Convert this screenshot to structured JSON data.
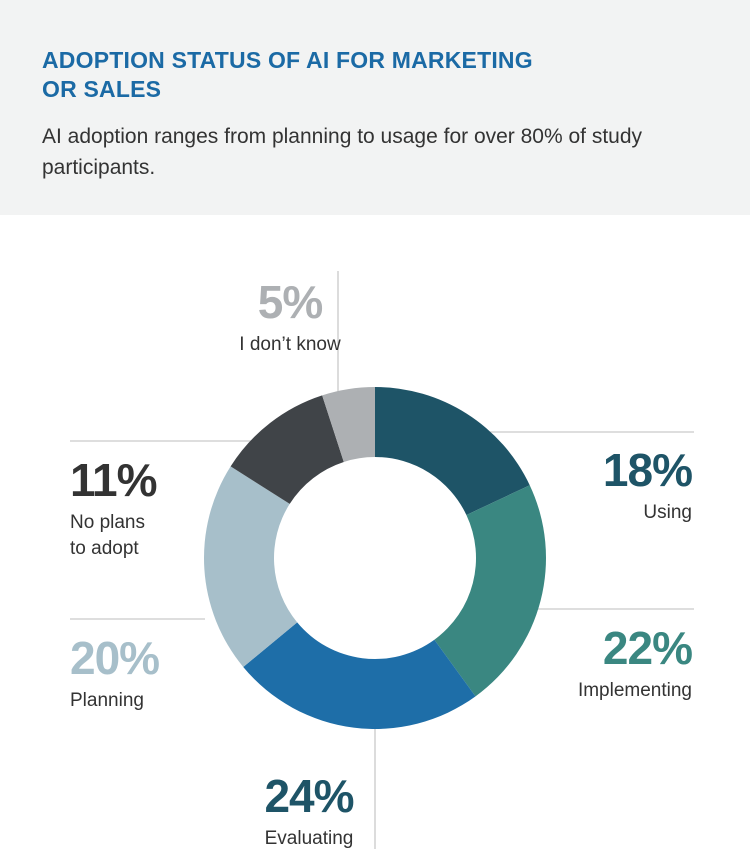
{
  "header": {
    "title_line1": "ADOPTION STATUS OF AI FOR MARKETING",
    "title_line2": "OR SALES",
    "subtitle_line1": "AI adoption ranges from planning to usage for over 80% of study",
    "subtitle_line2": "participants."
  },
  "chart_data": {
    "type": "pie",
    "categories": [
      "Using",
      "Implementing",
      "Evaluating",
      "Planning",
      "No plans to adopt",
      "I don’t know"
    ],
    "values": [
      18,
      22,
      24,
      20,
      11,
      5
    ],
    "percent_labels": [
      "18%",
      "22%",
      "24%",
      "20%",
      "11%",
      "5%"
    ],
    "label_lines": [
      [
        "Using"
      ],
      [
        "Implementing"
      ],
      [
        "Evaluating"
      ],
      [
        "Planning"
      ],
      [
        "No plans",
        "to adopt"
      ],
      [
        "I don’t know"
      ]
    ],
    "colors": [
      "#1e5467",
      "#3a8781",
      "#1e6ea8",
      "#a7bfca",
      "#404448",
      "#adb0b3"
    ],
    "label_colors": [
      "#1e5467",
      "#3a8781",
      "#1e5467",
      "#a7bfca",
      "#333333",
      "#adb0b3"
    ],
    "donut": true,
    "legend": "none"
  }
}
